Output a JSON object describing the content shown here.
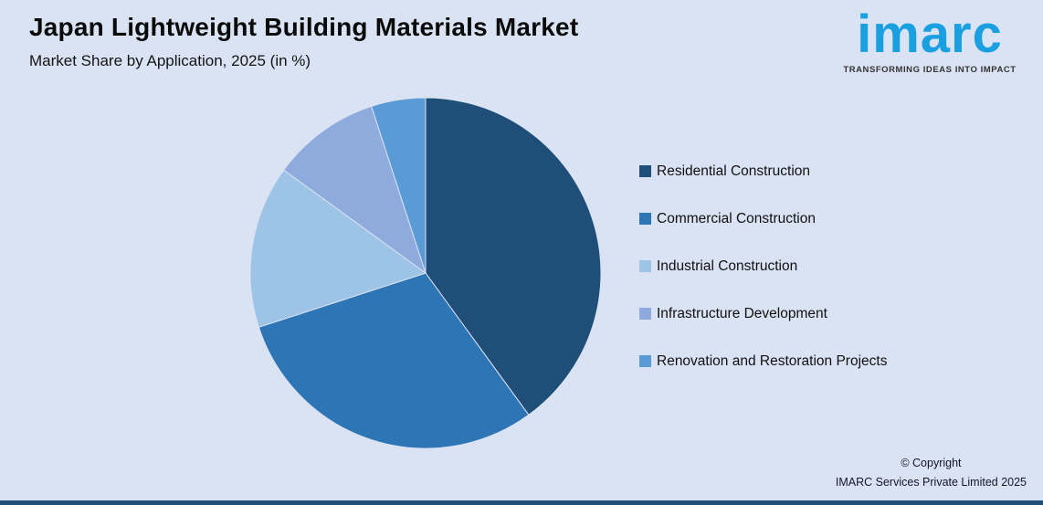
{
  "title": "Japan Lightweight Building Materials Market",
  "subtitle": "Market Share by Application, 2025 (in %)",
  "logo": {
    "wordmark": "imarc",
    "tagline": "TRANSFORMING IDEAS INTO IMPACT",
    "brand_color": "#1aa0e1"
  },
  "chart_data": {
    "type": "pie",
    "title": "Japan Lightweight Building Materials Market",
    "subtitle": "Market Share by Application, 2025 (in %)",
    "categories": [
      "Residential Construction",
      "Commercial Construction",
      "Industrial Construction",
      "Infrastructure Development",
      "Renovation and Restoration Projects"
    ],
    "values": [
      40,
      30,
      15,
      10,
      5
    ],
    "colors": [
      "#1f4e79",
      "#2e75b6",
      "#9dc3e6",
      "#8faadc",
      "#5b9bd5"
    ],
    "start_angle_deg": 0,
    "direction": "clockwise",
    "legend_position": "right",
    "data_labels": false
  },
  "footer": {
    "copyright_line1": "© Copyright",
    "copyright_line2": "IMARC Services Private Limited 2025"
  },
  "style_colors": {
    "background": "#dae3f3",
    "bottom_bar": "#1f4e79",
    "slice_separator": "#dae3f3"
  }
}
